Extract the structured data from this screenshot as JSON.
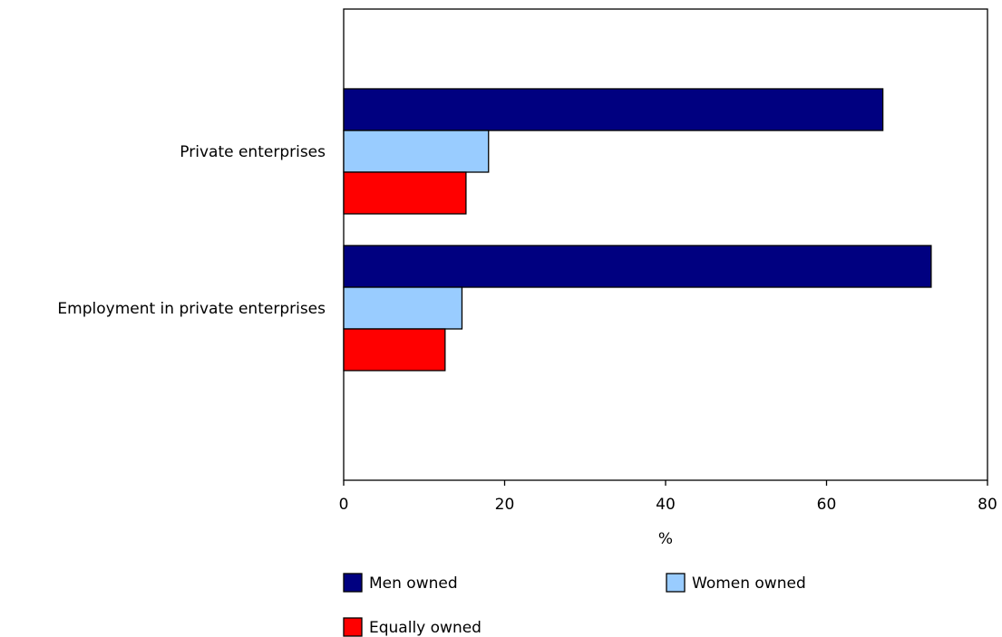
{
  "chart_data": {
    "type": "bar",
    "orientation": "horizontal",
    "categories": [
      "Private enterprises",
      "Employment in private enterprises"
    ],
    "series": [
      {
        "name": "Men owned",
        "values": [
          67,
          73
        ],
        "color": "#000080"
      },
      {
        "name": "Women owned",
        "values": [
          18,
          14.7
        ],
        "color": "#99CCFF"
      },
      {
        "name": "Equally owned",
        "values": [
          15.2,
          12.6
        ],
        "color": "#FF0000"
      }
    ],
    "x_ticks": [
      "0",
      "20",
      "40",
      "60",
      "80"
    ],
    "xlabel": "%",
    "ylabel": "",
    "title": "",
    "xlim": [
      0,
      80
    ],
    "grid": false,
    "legend_position": "bottom"
  }
}
